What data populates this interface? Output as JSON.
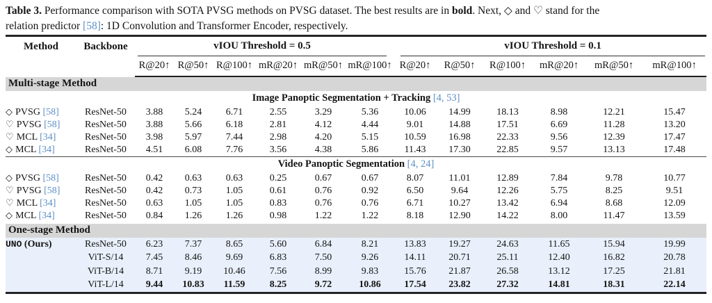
{
  "caption": {
    "segments": [
      {
        "text": "Table 3.",
        "style": "bold"
      },
      {
        "text": " Performance comparison with SOTA PVSG methods on PVSG dataset. The best results are in ",
        "style": "regular"
      },
      {
        "text": "bold",
        "style": "bold"
      },
      {
        "text": ". Next, ◇ and ♡ stand for the",
        "style": "regular"
      },
      {
        "text": "relation predictor ",
        "style": "regular"
      },
      {
        "text": "[58]",
        "style": "cite"
      },
      {
        "text": ": 1D Convolution and Transformer Encoder, respectively.",
        "style": "regular"
      }
    ]
  },
  "colors": {
    "section_bg": "#d6d6d6",
    "highlight_bg": "#e9f0fb",
    "cite_blue": "#5e90c8",
    "rule_dark": "#242424"
  },
  "table": {
    "headers": {
      "method": "Method",
      "backbone": "Backbone",
      "group1": "vIOU Threshold = 0.5",
      "group2": "vIOU Threshold = 0.1",
      "metrics": [
        "R@20↑",
        "R@50↑",
        "R@100↑",
        "mR@20↑",
        "mR@50↑",
        "mR@100↑",
        "R@20↑",
        "R@50↑",
        "R@100↑",
        "mR@20↑",
        "mR@50↑",
        "mR@100↑"
      ]
    },
    "rows": [
      {
        "kind": "section",
        "label": "Multi-stage Method"
      },
      {
        "kind": "subheader",
        "label": "Image Panoptic Segmentation + Tracking ",
        "cite": "[4, 53]",
        "rule_above": false
      },
      {
        "kind": "data",
        "symbol": "◇",
        "name": "PVSG ",
        "cite": "[58]",
        "backbone": "ResNet-50",
        "values": [
          "3.88",
          "5.24",
          "6.71",
          "2.55",
          "3.29",
          "5.36",
          "10.06",
          "14.99",
          "18.13",
          "8.98",
          "12.21",
          "15.47"
        ]
      },
      {
        "kind": "data",
        "symbol": "♡",
        "name": "PVSG ",
        "cite": "[58]",
        "backbone": "ResNet-50",
        "values": [
          "3.88",
          "5.66",
          "6.18",
          "2.81",
          "4.12",
          "4.44",
          "9.01",
          "14.88",
          "17.51",
          "6.69",
          "11.28",
          "13.20"
        ]
      },
      {
        "kind": "data",
        "symbol": "♡",
        "name": "MCL ",
        "cite": "[34]",
        "backbone": "ResNet-50",
        "values": [
          "3.98",
          "5.97",
          "7.44",
          "2.98",
          "4.20",
          "5.15",
          "10.59",
          "16.98",
          "22.33",
          "9.56",
          "12.39",
          "17.47"
        ]
      },
      {
        "kind": "data",
        "symbol": "◇",
        "name": "MCL ",
        "cite": "[34]",
        "backbone": "ResNet-50",
        "values": [
          "4.51",
          "6.08",
          "7.76",
          "3.56",
          "4.38",
          "5.86",
          "11.43",
          "17.30",
          "22.85",
          "9.57",
          "13.13",
          "17.48"
        ]
      },
      {
        "kind": "subheader",
        "label": "Video Panoptic Segmentation ",
        "cite": "[4, 24]",
        "rule_above": true
      },
      {
        "kind": "data",
        "symbol": "◇",
        "name": "PVSG ",
        "cite": "[58]",
        "backbone": "ResNet-50",
        "values": [
          "0.42",
          "0.63",
          "0.63",
          "0.25",
          "0.67",
          "0.67",
          "8.07",
          "11.01",
          "12.89",
          "7.84",
          "9.78",
          "10.77"
        ]
      },
      {
        "kind": "data",
        "symbol": "♡",
        "name": "PVSG ",
        "cite": "[58]",
        "backbone": "ResNet-50",
        "values": [
          "0.42",
          "0.73",
          "1.05",
          "0.61",
          "0.76",
          "0.92",
          "6.50",
          "9.64",
          "12.26",
          "5.75",
          "8.25",
          "9.51"
        ]
      },
      {
        "kind": "data",
        "symbol": "♡",
        "name": "MCL ",
        "cite": "[34]",
        "backbone": "ResNet-50",
        "values": [
          "0.63",
          "1.05",
          "1.05",
          "0.83",
          "0.76",
          "0.76",
          "6.71",
          "10.27",
          "13.42",
          "6.94",
          "8.68",
          "12.09"
        ]
      },
      {
        "kind": "data",
        "symbol": "◇",
        "name": "MCL ",
        "cite": "[34]",
        "backbone": "ResNet-50",
        "values": [
          "0.84",
          "1.26",
          "1.26",
          "0.98",
          "1.22",
          "1.22",
          "8.18",
          "12.90",
          "14.22",
          "8.00",
          "11.47",
          "13.59"
        ]
      },
      {
        "kind": "section",
        "label": "One-stage Method"
      },
      {
        "kind": "data",
        "name_mono": "UNO",
        "name_rest": " (Ours)",
        "backbone": "ResNet-50",
        "highlight": true,
        "values": [
          "6.23",
          "7.37",
          "8.65",
          "5.60",
          "6.84",
          "8.21",
          "13.83",
          "19.27",
          "24.63",
          "11.65",
          "15.94",
          "19.99"
        ]
      },
      {
        "kind": "data",
        "backbone": "ViT-S/14",
        "highlight": true,
        "values": [
          "7.45",
          "8.46",
          "9.69",
          "6.83",
          "7.50",
          "9.26",
          "14.11",
          "20.71",
          "25.11",
          "12.40",
          "16.82",
          "20.78"
        ]
      },
      {
        "kind": "data",
        "backbone": "ViT-B/14",
        "highlight": true,
        "values": [
          "8.71",
          "9.19",
          "10.46",
          "7.56",
          "8.99",
          "9.83",
          "15.76",
          "21.87",
          "26.58",
          "13.12",
          "17.25",
          "21.81"
        ]
      },
      {
        "kind": "data",
        "backbone": "ViT-L/14",
        "highlight": true,
        "bold": true,
        "values": [
          "9.44",
          "10.83",
          "11.59",
          "8.25",
          "9.72",
          "10.86",
          "17.54",
          "23.82",
          "27.32",
          "14.81",
          "18.31",
          "22.14"
        ]
      }
    ]
  }
}
